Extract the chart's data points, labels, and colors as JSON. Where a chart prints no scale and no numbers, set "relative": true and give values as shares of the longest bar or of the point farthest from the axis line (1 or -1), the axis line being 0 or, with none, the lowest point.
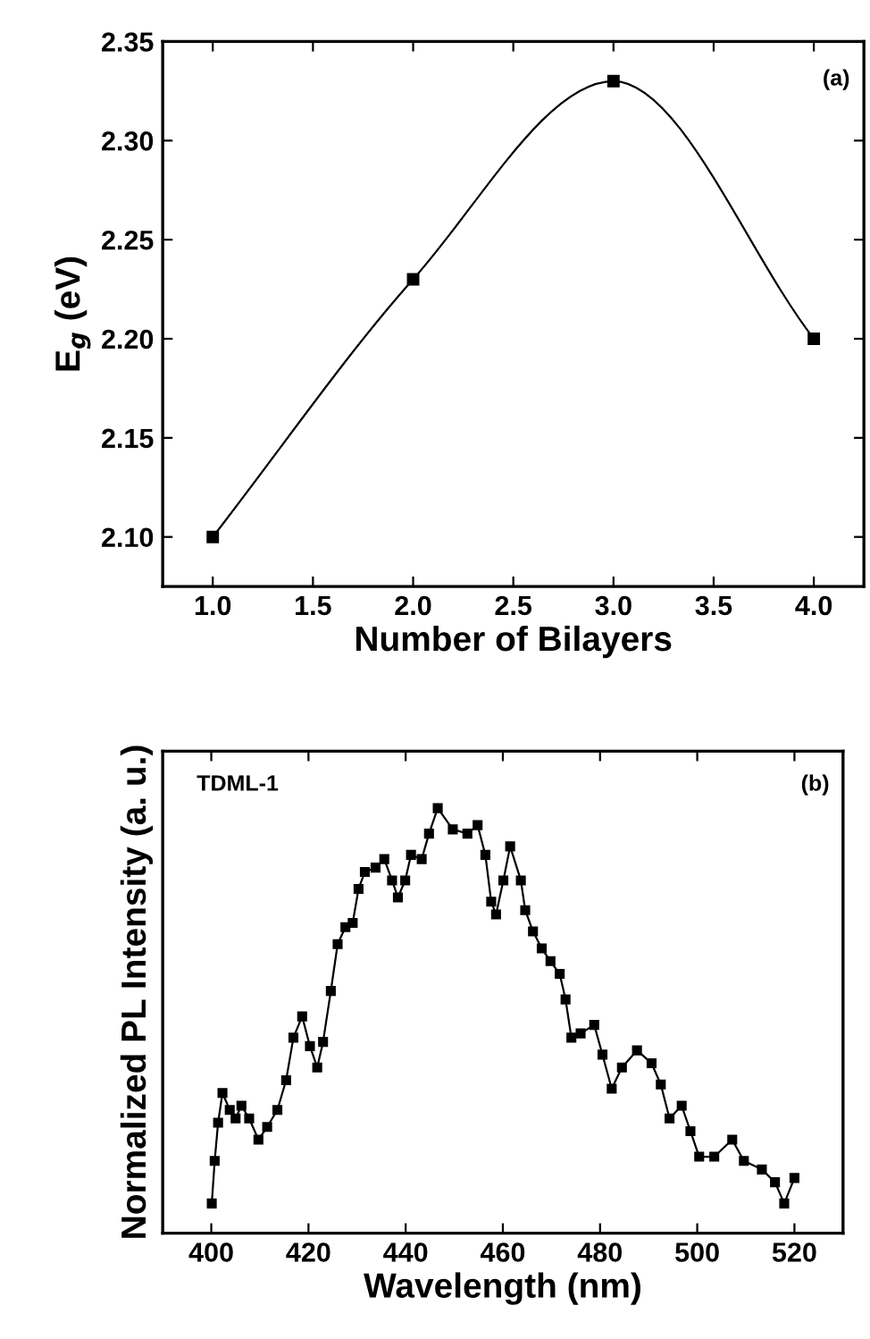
{
  "chart_data": [
    {
      "type": "line",
      "xlabel": "Number of Bilayers",
      "ylabel": "E$_{g}$ (eV)",
      "annotations": [
        "(a)"
      ],
      "x": [
        1.0,
        2.0,
        3.0,
        4.0
      ],
      "series": [
        {
          "color": "#000000",
          "values": [
            2.1,
            2.23,
            2.33,
            2.2
          ]
        }
      ],
      "xlim": [
        0.75,
        4.25
      ],
      "xticks": [
        {
          "value": 1.0,
          "label": "1.0"
        },
        1.5,
        {
          "value": 2.0,
          "label": "2.0"
        },
        2.5,
        {
          "value": 3.0,
          "label": "3.0"
        },
        3.5,
        {
          "value": 4.0,
          "label": "4.0"
        }
      ],
      "ylim": [
        2.075,
        2.35
      ],
      "yticks": [
        {
          "value": 2.1,
          "label": "2.10"
        },
        2.15,
        {
          "value": 2.2,
          "label": "2.20"
        },
        2.25,
        {
          "value": 2.3,
          "label": "2.30"
        },
        2.35
      ],
      "marker": "square",
      "line_style": "solid",
      "grid": false,
      "legend": false
    },
    {
      "type": "line",
      "xlabel": "Wavelength (nm)",
      "ylabel": "Normalized PL Intensity (a. u.)",
      "annotations": [
        "TDML-1",
        "(b)"
      ],
      "relative": true,
      "tick_labels": "x",
      "x": [
        400.1,
        400.7,
        401.4,
        402.3,
        403.8,
        405.0,
        406.2,
        407.8,
        409.7,
        411.5,
        413.6,
        415.4,
        416.9,
        418.7,
        420.3,
        421.8,
        423.0,
        424.6,
        426.0,
        427.6,
        429.1,
        430.3,
        431.6,
        433.8,
        435.6,
        437.2,
        438.4,
        439.9,
        441.1,
        443.3,
        444.8,
        446.6,
        449.7,
        452.7,
        454.8,
        456.4,
        457.6,
        458.6,
        460.1,
        461.5,
        463.7,
        464.6,
        466.2,
        468.0,
        469.8,
        471.7,
        472.9,
        474.1,
        476.0,
        478.8,
        480.5,
        482.4,
        484.5,
        487.6,
        490.6,
        492.5,
        494.3,
        496.8,
        498.6,
        500.4,
        503.5,
        507.2,
        509.6,
        513.3,
        516.0,
        517.9,
        520.0
      ],
      "series": [
        {
          "color": "#000000",
          "values": [
            0.07,
            0.17,
            0.26,
            0.33,
            0.29,
            0.27,
            0.3,
            0.27,
            0.22,
            0.25,
            0.29,
            0.36,
            0.46,
            0.51,
            0.44,
            0.39,
            0.45,
            0.57,
            0.68,
            0.72,
            0.73,
            0.81,
            0.85,
            0.86,
            0.88,
            0.83,
            0.79,
            0.83,
            0.89,
            0.88,
            0.94,
            1.0,
            0.95,
            0.94,
            0.96,
            0.89,
            0.78,
            0.75,
            0.83,
            0.91,
            0.83,
            0.76,
            0.71,
            0.67,
            0.64,
            0.61,
            0.55,
            0.46,
            0.47,
            0.49,
            0.42,
            0.34,
            0.39,
            0.43,
            0.4,
            0.35,
            0.27,
            0.3,
            0.24,
            0.18,
            0.18,
            0.22,
            0.17,
            0.15,
            0.12,
            0.07,
            0.13
          ]
        }
      ],
      "xlim": [
        390,
        530
      ],
      "xticks": [
        400,
        420,
        440,
        460,
        480,
        500,
        520
      ],
      "marker": "square",
      "line_style": "solid",
      "grid": false,
      "legend": false
    }
  ]
}
